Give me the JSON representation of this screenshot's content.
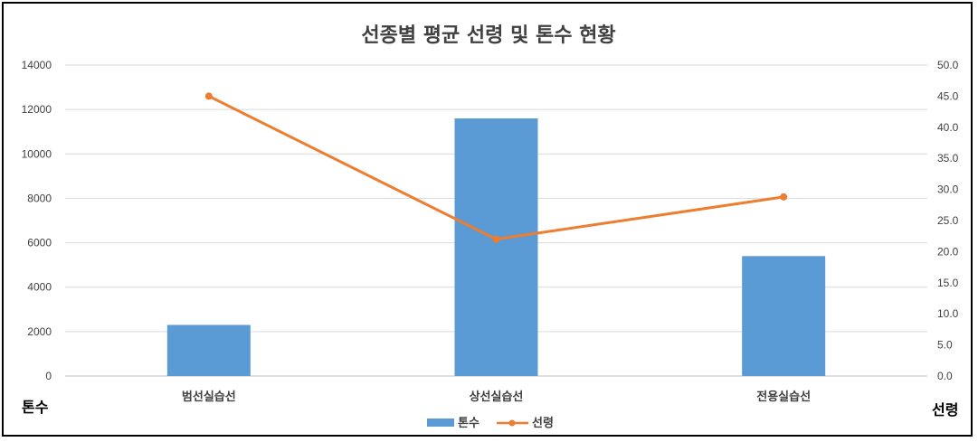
{
  "chart_data": {
    "type": "bar+line",
    "title": "선종별 평균 선령 및 톤수 현황",
    "categories": [
      "범선실습선",
      "상선실습선",
      "전용실습선"
    ],
    "series": [
      {
        "name": "톤수",
        "type": "bar",
        "axis": "left",
        "color": "#5B9BD5",
        "values": [
          2300,
          11600,
          5400
        ]
      },
      {
        "name": "선령",
        "type": "line",
        "axis": "right",
        "color": "#ED7D31",
        "values": [
          45.0,
          22.0,
          28.8
        ]
      }
    ],
    "y_left": {
      "label": "톤수",
      "range": [
        0,
        14000
      ],
      "ticks": [
        "0",
        "2000",
        "4000",
        "6000",
        "8000",
        "10000",
        "12000",
        "14000"
      ]
    },
    "y_right": {
      "label": "선령",
      "range": [
        0,
        50
      ],
      "ticks": [
        "0.0",
        "5.0",
        "10.0",
        "15.0",
        "20.0",
        "25.0",
        "30.0",
        "35.0",
        "40.0",
        "45.0",
        "50.0"
      ]
    },
    "grid": true,
    "legend_position": "bottom"
  }
}
